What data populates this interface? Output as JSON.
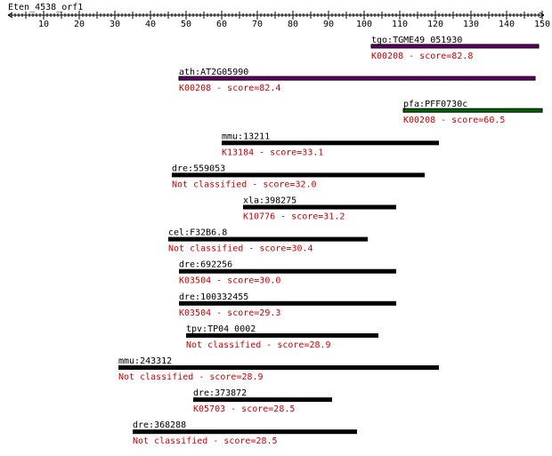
{
  "query": {
    "name": "Eten_4538_orf1",
    "length": 150
  },
  "ruler": {
    "ticks": [
      10,
      20,
      30,
      40,
      50,
      60,
      70,
      80,
      90,
      100,
      110,
      120,
      130,
      140,
      150
    ]
  },
  "colors": {
    "text": "#000000",
    "score_text": "#cc0000",
    "default_bar": "#000000",
    "purple_bar": "#660066",
    "green_bar": "#006600"
  },
  "hits": [
    {
      "name": "tgo:TGME49_051930",
      "annotation": "K00208 - score=82.8",
      "start": 102,
      "end": 149,
      "bar": "purple"
    },
    {
      "name": "ath:AT2G05990",
      "annotation": "K00208 - score=82.4",
      "start": 48,
      "end": 148,
      "bar": "purple"
    },
    {
      "name": "pfa:PFF0730c",
      "annotation": "K00208 - score=60.5",
      "start": 111,
      "end": 150,
      "bar": "green"
    },
    {
      "name": "mmu:13211",
      "annotation": "K13184 - score=33.1",
      "start": 60,
      "end": 121,
      "bar": "black"
    },
    {
      "name": "dre:559053",
      "annotation": "Not classified - score=32.0",
      "start": 46,
      "end": 117,
      "bar": "black"
    },
    {
      "name": "xla:398275",
      "annotation": "K10776 - score=31.2",
      "start": 66,
      "end": 109,
      "bar": "black"
    },
    {
      "name": "cel:F32B6.8",
      "annotation": "Not classified - score=30.4",
      "start": 45,
      "end": 101,
      "bar": "black"
    },
    {
      "name": "dre:692256",
      "annotation": "K03504 - score=30.0",
      "start": 48,
      "end": 109,
      "bar": "black"
    },
    {
      "name": "dre:100332455",
      "annotation": "K03504 - score=29.3",
      "start": 48,
      "end": 109,
      "bar": "black"
    },
    {
      "name": "tpv:TP04_0002",
      "annotation": "Not classified - score=28.9",
      "start": 50,
      "end": 104,
      "bar": "black"
    },
    {
      "name": "mmu:243312",
      "annotation": "Not classified - score=28.9",
      "start": 31,
      "end": 121,
      "bar": "black"
    },
    {
      "name": "dre:373872",
      "annotation": "K05703 - score=28.5",
      "start": 52,
      "end": 91,
      "bar": "black"
    },
    {
      "name": "dre:368288",
      "annotation": "Not classified - score=28.5",
      "start": 35,
      "end": 98,
      "bar": "black"
    }
  ]
}
